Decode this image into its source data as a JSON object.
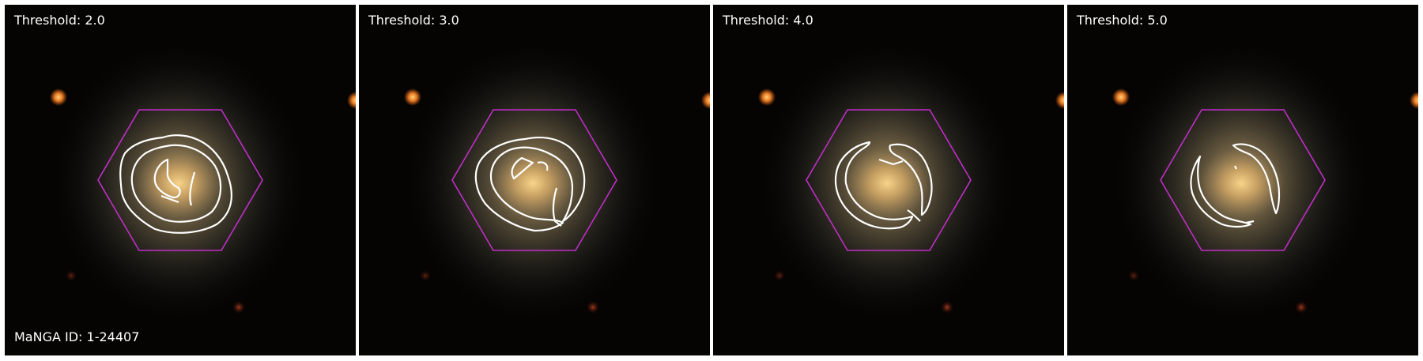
{
  "figure": {
    "panels": [
      {
        "title": "Threshold: 2.0",
        "mask": "mask-t2"
      },
      {
        "title": "Threshold: 3.0",
        "mask": "mask-t3"
      },
      {
        "title": "Threshold: 4.0",
        "mask": "mask-t4"
      },
      {
        "title": "Threshold: 5.0",
        "mask": "mask-t5"
      }
    ],
    "id_label": "MaNGA ID: 1-24407",
    "colors": {
      "hexagon": "#c02ec8",
      "contour": "#ffffff",
      "galaxy_core": "#f0b860",
      "star": "#ff8a2a"
    }
  }
}
